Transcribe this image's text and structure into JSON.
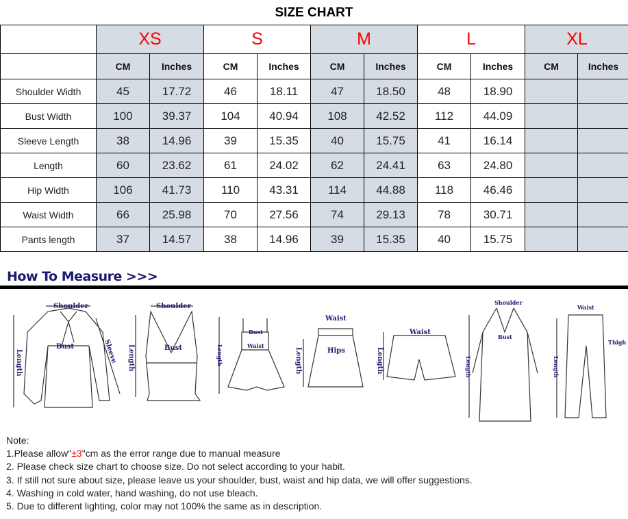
{
  "title": "SIZE CHART",
  "sizes": [
    "XS",
    "S",
    "M",
    "L",
    "XL"
  ],
  "units": {
    "cm": "CM",
    "inches": "Inches"
  },
  "rows": [
    {
      "label": "Shoulder Width",
      "values": [
        "45",
        "17.72",
        "46",
        "18.11",
        "47",
        "18.50",
        "48",
        "18.90",
        "",
        ""
      ]
    },
    {
      "label": "Bust Width",
      "values": [
        "100",
        "39.37",
        "104",
        "40.94",
        "108",
        "42.52",
        "112",
        "44.09",
        "",
        ""
      ]
    },
    {
      "label": "Sleeve Length",
      "values": [
        "38",
        "14.96",
        "39",
        "15.35",
        "40",
        "15.75",
        "41",
        "16.14",
        "",
        ""
      ]
    },
    {
      "label": "Length",
      "values": [
        "60",
        "23.62",
        "61",
        "24.02",
        "62",
        "24.41",
        "63",
        "24.80",
        "",
        ""
      ]
    },
    {
      "label": "Hip Width",
      "values": [
        "106",
        "41.73",
        "110",
        "43.31",
        "114",
        "44.88",
        "118",
        "46.46",
        "",
        ""
      ]
    },
    {
      "label": "Waist Width",
      "values": [
        "66",
        "25.98",
        "70",
        "27.56",
        "74",
        "29.13",
        "78",
        "30.71",
        "",
        ""
      ]
    },
    {
      "label": "Pants length",
      "values": [
        "37",
        "14.57",
        "38",
        "14.96",
        "39",
        "15.35",
        "40",
        "15.75",
        "",
        ""
      ]
    }
  ],
  "size_color": "#ff0000",
  "shade_color": "#d6dce4",
  "how_to_measure": "How To Measure >>>",
  "diagram_labels": {
    "shoulder": "Shoulder",
    "bust": "Bust",
    "sleeve": "Sleeve",
    "length": "Length",
    "waist": "Waist",
    "hips": "Hips",
    "thigh": "Thigh"
  },
  "notes": {
    "heading": "Note:",
    "n1_pre": "1.Please allow\"",
    "n1_red": "±3",
    "n1_post": "\"cm as the error range due to manual measure",
    "n2": "2. Please check size chart to choose size. Do not select according to your habit.",
    "n3": "3. If still not sure about size, please leave us your shoulder, bust, waist and hip data, we will offer suggestions.",
    "n4": "4. Washing in cold water, hand washing, do not use bleach.",
    "n5": "5. Due to different lighting, color may not 100% the same as in description."
  }
}
